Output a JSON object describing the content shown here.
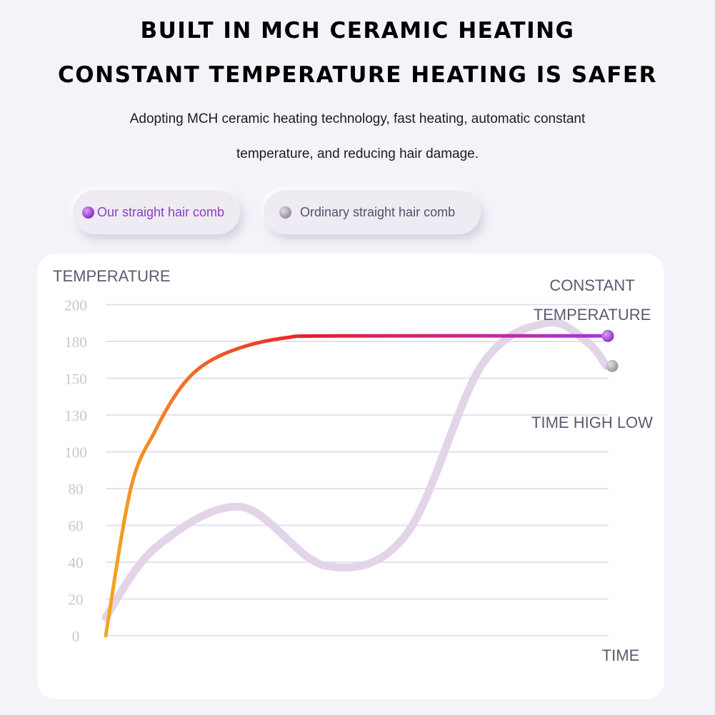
{
  "header": {
    "title_line1": "BUILT IN MCH CERAMIC HEATING",
    "title_line2": "CONSTANT TEMPERATURE HEATING IS SAFER",
    "subtitle_line1": "Adopting MCH ceramic heating technology, fast heating, automatic constant",
    "subtitle_line2": "temperature, and reducing hair damage."
  },
  "legend": {
    "ours": "Our straight hair comb",
    "ordinary": "Ordinary straight hair comb"
  },
  "colors": {
    "ours_start": "#f5a623",
    "ours_mid": "#e8202a",
    "ours_end": "#a434e6",
    "ordinary": "#e4d4e8",
    "grid": "#e3e1ee",
    "tick": "#c7c5d6"
  },
  "chart_data": {
    "type": "line",
    "ylabel": "TEMPERATURE",
    "xlabel": "TIME",
    "yticks": [
      0,
      20,
      40,
      60,
      80,
      100,
      130,
      150,
      180,
      200
    ],
    "annotations": {
      "constant_line1": "CONSTANT",
      "constant_line2": "TEMPERATURE",
      "high_low": "TIME HIGH LOW"
    },
    "series": [
      {
        "name": "Our straight hair comb",
        "x": [
          0,
          0.05,
          0.1,
          0.15,
          0.2,
          0.27,
          0.36,
          0.46,
          1.0
        ],
        "y": [
          0,
          80,
          118,
          145,
          162,
          175,
          182,
          183,
          183
        ]
      },
      {
        "name": "Ordinary straight hair comb",
        "x": [
          0,
          0.1,
          0.27,
          0.44,
          0.6,
          0.75,
          0.88,
          0.96,
          1.0
        ],
        "y": [
          10,
          48,
          70,
          38,
          55,
          160,
          190,
          180,
          160
        ]
      }
    ]
  }
}
